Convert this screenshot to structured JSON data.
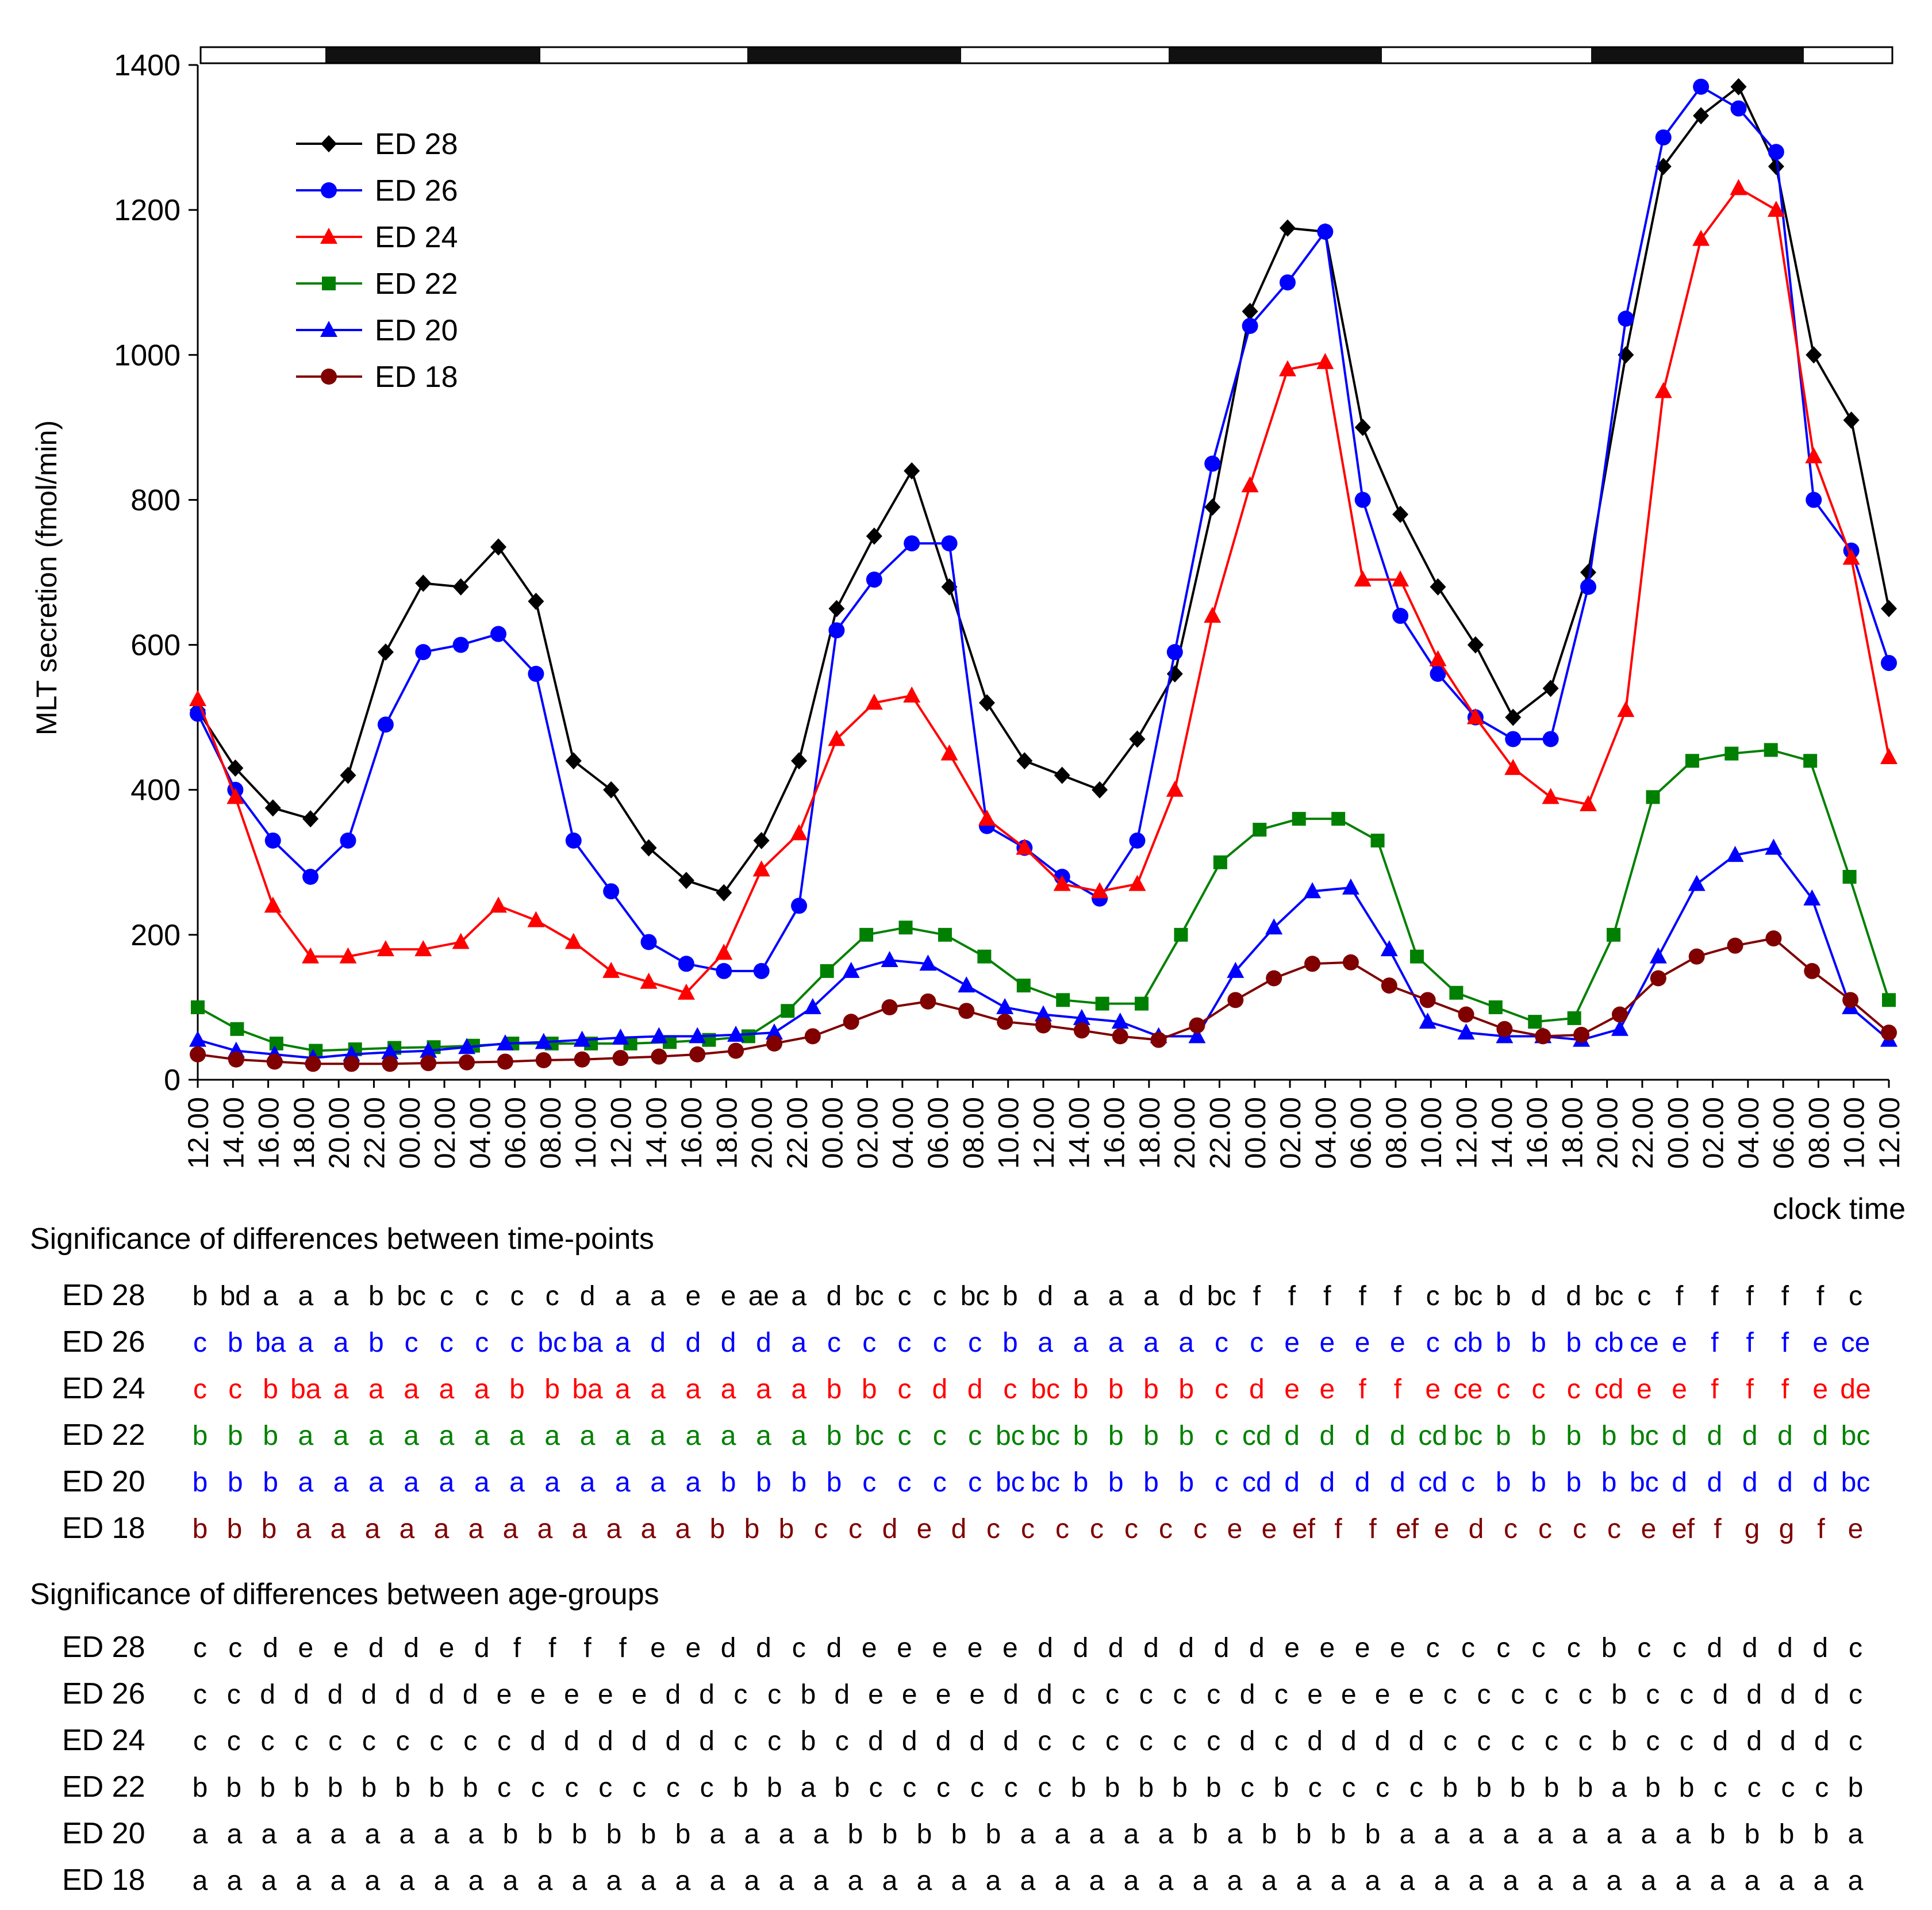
{
  "chart_data": {
    "type": "line",
    "xlabel": "clock time",
    "ylabel": "MLT secretion (fmol/min)",
    "ylim": [
      0,
      1400
    ],
    "yticks": [
      0,
      200,
      400,
      600,
      800,
      1000,
      1200,
      1400
    ],
    "xticks": [
      "12.00",
      "14.00",
      "16.00",
      "18.00",
      "20.00",
      "22.00",
      "00.00",
      "02.00",
      "04.00",
      "06.00",
      "08.00",
      "10.00",
      "12.00",
      "14.00",
      "16.00",
      "18.00",
      "20.00",
      "22.00",
      "00.00",
      "02.00",
      "04.00",
      "06.00",
      "08.00",
      "10.00",
      "12.00",
      "14.00",
      "16.00",
      "18.00",
      "20.00",
      "22.00",
      "00.00",
      "02.00",
      "04.00",
      "06.00",
      "08.00",
      "10.00",
      "12.00",
      "14.00",
      "16.00",
      "18.00",
      "20.00",
      "22.00",
      "00.00",
      "02.00",
      "04.00",
      "06.00",
      "08.00",
      "10.00",
      "12.00"
    ],
    "light_dark_bar": [
      "light",
      "dark",
      "light",
      "dark",
      "light",
      "dark",
      "light",
      "dark",
      "light"
    ],
    "x_hours_from_first_tick": [
      0,
      2,
      4,
      6,
      8,
      10,
      12,
      14,
      16,
      18,
      20,
      22,
      24,
      26,
      28,
      30,
      32,
      34,
      36,
      38,
      40,
      42,
      44,
      46,
      48,
      50,
      52,
      54,
      56,
      58,
      60,
      62,
      64,
      66,
      68,
      70,
      72,
      74,
      76,
      78,
      80,
      82,
      84,
      86,
      88,
      90,
      92,
      94,
      96
    ],
    "legend": [
      "ED 28",
      "ED 26",
      "ED 24",
      "ED 22",
      "ED 20",
      "ED 18"
    ],
    "series": [
      {
        "name": "ED 28",
        "color": "#000000",
        "marker": "diamond",
        "values": [
          510,
          430,
          375,
          360,
          420,
          590,
          685,
          680,
          735,
          660,
          440,
          400,
          320,
          275,
          258,
          330,
          440,
          650,
          750,
          840,
          680,
          520,
          440,
          420,
          400,
          470,
          560,
          790,
          1060,
          1175,
          1170,
          900,
          780,
          680,
          600,
          500,
          540,
          700,
          1000,
          1260,
          1330,
          1370,
          1260,
          1000,
          910,
          650
        ]
      },
      {
        "name": "ED 26",
        "color": "#0000ff",
        "marker": "circle",
        "values": [
          505,
          400,
          330,
          280,
          330,
          490,
          590,
          600,
          615,
          560,
          330,
          260,
          190,
          160,
          150,
          150,
          240,
          620,
          690,
          740,
          740,
          350,
          320,
          280,
          250,
          330,
          590,
          850,
          1040,
          1100,
          1170,
          800,
          640,
          560,
          500,
          470,
          470,
          680,
          1050,
          1300,
          1370,
          1340,
          1280,
          800,
          730,
          575
        ]
      },
      {
        "name": "ED 24",
        "color": "#ff0000",
        "marker": "triangle",
        "values": [
          525,
          390,
          240,
          170,
          170,
          180,
          180,
          190,
          240,
          220,
          190,
          150,
          135,
          120,
          175,
          290,
          340,
          470,
          520,
          530,
          450,
          360,
          320,
          270,
          260,
          270,
          400,
          640,
          820,
          980,
          990,
          690,
          690,
          580,
          500,
          430,
          390,
          380,
          510,
          950,
          1160,
          1230,
          1200,
          860,
          720,
          445
        ]
      },
      {
        "name": "ED 22",
        "color": "#008000",
        "marker": "square",
        "values": [
          100,
          70,
          50,
          40,
          42,
          44,
          45,
          47,
          50,
          50,
          50,
          50,
          52,
          55,
          60,
          95,
          150,
          200,
          210,
          200,
          170,
          130,
          110,
          105,
          105,
          200,
          300,
          345,
          360,
          360,
          330,
          170,
          120,
          100,
          80,
          85,
          200,
          390,
          440,
          450,
          455,
          440,
          280,
          110
        ]
      },
      {
        "name": "ED 20",
        "color": "#0000ff",
        "marker": "triangle",
        "values": [
          55,
          40,
          35,
          30,
          35,
          38,
          40,
          45,
          50,
          52,
          55,
          58,
          60,
          60,
          62,
          65,
          100,
          150,
          165,
          160,
          130,
          100,
          90,
          85,
          80,
          60,
          60,
          150,
          210,
          260,
          265,
          180,
          80,
          65,
          60,
          60,
          55,
          70,
          170,
          270,
          310,
          320,
          250,
          100,
          55
        ]
      },
      {
        "name": "ED 18",
        "color": "#800000",
        "marker": "circle",
        "values": [
          35,
          28,
          25,
          22,
          22,
          22,
          23,
          24,
          25,
          27,
          28,
          30,
          32,
          35,
          40,
          50,
          60,
          80,
          100,
          108,
          95,
          80,
          75,
          68,
          60,
          55,
          75,
          110,
          140,
          160,
          162,
          130,
          110,
          90,
          70,
          60,
          62,
          90,
          140,
          170,
          185,
          195,
          150,
          110,
          65
        ]
      }
    ]
  },
  "tables": {
    "time_points_title": "Significance of differences between time-points",
    "age_groups_title": "Significance of differences between age-groups",
    "time_points": [
      {
        "name": "ED 28",
        "color": "#000000",
        "letters": [
          "b",
          "bd",
          "a",
          "a",
          "a",
          "b",
          "bc",
          "c",
          "c",
          "c",
          "c",
          "d",
          "a",
          "a",
          "e",
          "e",
          "ae",
          "a",
          "d",
          "bc",
          "c",
          "c",
          "bc",
          "b",
          "d",
          "a",
          "a",
          "a",
          "d",
          "bc",
          "f",
          "f",
          "f",
          "f",
          "f",
          "c",
          "bc",
          "b",
          "d",
          "d",
          "bc",
          "c",
          "f",
          "f",
          "f",
          "f",
          "f",
          "c"
        ]
      },
      {
        "name": "ED 26",
        "color": "#0000ff",
        "letters": [
          "c",
          "b",
          "ba",
          "a",
          "a",
          "b",
          "c",
          "c",
          "c",
          "c",
          "bc",
          "ba",
          "a",
          "d",
          "d",
          "d",
          "d",
          "a",
          "c",
          "c",
          "c",
          "c",
          "c",
          "b",
          "a",
          "a",
          "a",
          "a",
          "a",
          "c",
          "c",
          "e",
          "e",
          "e",
          "e",
          "c",
          "cb",
          "b",
          "b",
          "b",
          "cb",
          "ce",
          "e",
          "f",
          "f",
          "f",
          "e",
          "ce"
        ]
      },
      {
        "name": "ED 24",
        "color": "#ff0000",
        "letters": [
          "c",
          "c",
          "b",
          "ba",
          "a",
          "a",
          "a",
          "a",
          "a",
          "b",
          "b",
          "ba",
          "a",
          "a",
          "a",
          "a",
          "a",
          "a",
          "b",
          "b",
          "c",
          "d",
          "d",
          "c",
          "bc",
          "b",
          "b",
          "b",
          "b",
          "c",
          "d",
          "e",
          "e",
          "f",
          "f",
          "e",
          "ce",
          "c",
          "c",
          "c",
          "cd",
          "e",
          "e",
          "f",
          "f",
          "f",
          "e",
          "de"
        ]
      },
      {
        "name": "ED 22",
        "color": "#008000",
        "letters": [
          "b",
          "b",
          "b",
          "a",
          "a",
          "a",
          "a",
          "a",
          "a",
          "a",
          "a",
          "a",
          "a",
          "a",
          "a",
          "a",
          "a",
          "a",
          "b",
          "bc",
          "c",
          "c",
          "c",
          "bc",
          "bc",
          "b",
          "b",
          "b",
          "b",
          "c",
          "cd",
          "d",
          "d",
          "d",
          "d",
          "cd",
          "bc",
          "b",
          "b",
          "b",
          "b",
          "bc",
          "d",
          "d",
          "d",
          "d",
          "d",
          "bc"
        ]
      },
      {
        "name": "ED 20",
        "color": "#0000ff",
        "letters": [
          "b",
          "b",
          "b",
          "a",
          "a",
          "a",
          "a",
          "a",
          "a",
          "a",
          "a",
          "a",
          "a",
          "a",
          "a",
          "b",
          "b",
          "b",
          "b",
          "c",
          "c",
          "c",
          "c",
          "bc",
          "bc",
          "b",
          "b",
          "b",
          "b",
          "c",
          "cd",
          "d",
          "d",
          "d",
          "d",
          "cd",
          "c",
          "b",
          "b",
          "b",
          "b",
          "bc",
          "d",
          "d",
          "d",
          "d",
          "d",
          "bc"
        ]
      },
      {
        "name": "ED 18",
        "color": "#800000",
        "letters": [
          "b",
          "b",
          "b",
          "a",
          "a",
          "a",
          "a",
          "a",
          "a",
          "a",
          "a",
          "a",
          "a",
          "a",
          "a",
          "b",
          "b",
          "b",
          "c",
          "c",
          "d",
          "e",
          "d",
          "c",
          "c",
          "c",
          "c",
          "c",
          "c",
          "c",
          "e",
          "e",
          "ef",
          "f",
          "f",
          "ef",
          "e",
          "d",
          "c",
          "c",
          "c",
          "c",
          "e",
          "ef",
          "f",
          "g",
          "g",
          "f",
          "e"
        ]
      }
    ],
    "age_groups": [
      {
        "name": "ED 28",
        "color": "#000000",
        "letters": [
          "c",
          "c",
          "d",
          "e",
          "e",
          "d",
          "d",
          "e",
          "d",
          "f",
          "f",
          "f",
          "f",
          "e",
          "e",
          "d",
          "d",
          "c",
          "d",
          "e",
          "e",
          "e",
          "e",
          "e",
          "d",
          "d",
          "d",
          "d",
          "d",
          "d",
          "d",
          "e",
          "e",
          "e",
          "e",
          "c",
          "c",
          "c",
          "c",
          "c",
          "b",
          "c",
          "c",
          "d",
          "d",
          "d",
          "d",
          "c"
        ]
      },
      {
        "name": "ED 26",
        "color": "#000000",
        "letters": [
          "c",
          "c",
          "d",
          "d",
          "d",
          "d",
          "d",
          "d",
          "d",
          "e",
          "e",
          "e",
          "e",
          "e",
          "d",
          "d",
          "c",
          "c",
          "b",
          "d",
          "e",
          "e",
          "e",
          "e",
          "d",
          "d",
          "c",
          "c",
          "c",
          "c",
          "c",
          "d",
          "c",
          "e",
          "e",
          "e",
          "e",
          "c",
          "c",
          "c",
          "c",
          "c",
          "b",
          "c",
          "c",
          "d",
          "d",
          "d",
          "d",
          "c"
        ]
      },
      {
        "name": "ED 24",
        "color": "#000000",
        "letters": [
          "c",
          "c",
          "c",
          "c",
          "c",
          "c",
          "c",
          "c",
          "c",
          "c",
          "d",
          "d",
          "d",
          "d",
          "d",
          "d",
          "c",
          "c",
          "b",
          "c",
          "d",
          "d",
          "d",
          "d",
          "d",
          "c",
          "c",
          "c",
          "c",
          "c",
          "c",
          "d",
          "c",
          "d",
          "d",
          "d",
          "d",
          "c",
          "c",
          "c",
          "c",
          "c",
          "b",
          "c",
          "c",
          "d",
          "d",
          "d",
          "d",
          "c"
        ]
      },
      {
        "name": "ED 22",
        "color": "#000000",
        "letters": [
          "b",
          "b",
          "b",
          "b",
          "b",
          "b",
          "b",
          "b",
          "b",
          "c",
          "c",
          "c",
          "c",
          "c",
          "c",
          "c",
          "b",
          "b",
          "a",
          "b",
          "c",
          "c",
          "c",
          "c",
          "c",
          "c",
          "b",
          "b",
          "b",
          "b",
          "b",
          "c",
          "b",
          "c",
          "c",
          "c",
          "c",
          "b",
          "b",
          "b",
          "b",
          "b",
          "a",
          "b",
          "b",
          "c",
          "c",
          "c",
          "c",
          "b"
        ]
      },
      {
        "name": "ED 20",
        "color": "#000000",
        "letters": [
          "a",
          "a",
          "a",
          "a",
          "a",
          "a",
          "a",
          "a",
          "a",
          "b",
          "b",
          "b",
          "b",
          "b",
          "b",
          "a",
          "a",
          "a",
          "a",
          "b",
          "b",
          "b",
          "b",
          "b",
          "a",
          "a",
          "a",
          "a",
          "a",
          "b",
          "a",
          "b",
          "b",
          "b",
          "b",
          "a",
          "a",
          "a",
          "a",
          "a",
          "a",
          "a",
          "a",
          "a",
          "b",
          "b",
          "b",
          "b",
          "a"
        ]
      },
      {
        "name": "ED 18",
        "color": "#000000",
        "letters": [
          "a",
          "a",
          "a",
          "a",
          "a",
          "a",
          "a",
          "a",
          "a",
          "a",
          "a",
          "a",
          "a",
          "a",
          "a",
          "a",
          "a",
          "a",
          "a",
          "a",
          "a",
          "a",
          "a",
          "a",
          "a",
          "a",
          "a",
          "a",
          "a",
          "a",
          "a",
          "a",
          "a",
          "a",
          "a",
          "a",
          "a",
          "a",
          "a",
          "a",
          "a",
          "a",
          "a",
          "a",
          "a",
          "a",
          "a",
          "a",
          "a"
        ]
      }
    ]
  }
}
